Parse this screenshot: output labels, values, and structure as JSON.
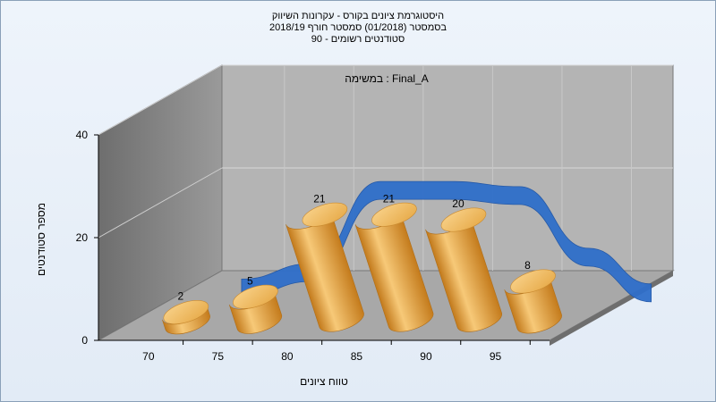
{
  "chart_data": {
    "type": "bar",
    "title_lines": [
      "היסטוגרמת ציונים בקורס - עקרונות השיווק",
      "בסמסטר  (01/2018)  סמסטר חורף 2018/19",
      "סטודנטים רשומים - 90"
    ],
    "annotation": "במשימה : Final_A",
    "categories": [
      "70",
      "75",
      "80",
      "85",
      "90",
      "95"
    ],
    "values": [
      2,
      5,
      21,
      21,
      20,
      8
    ],
    "trend_line": true,
    "ylabel": "מספר סטודנטים",
    "xlabel": "טווח ציונים",
    "ylim": [
      0,
      40
    ],
    "yticks": [
      "0",
      "20",
      "40"
    ],
    "colors": {
      "bar": "#e0a040",
      "trend": "#2f6fca",
      "back_wall": "#b4b4b4",
      "side_wall": "#7a7a7a",
      "floor": "#a8a8a8"
    }
  }
}
